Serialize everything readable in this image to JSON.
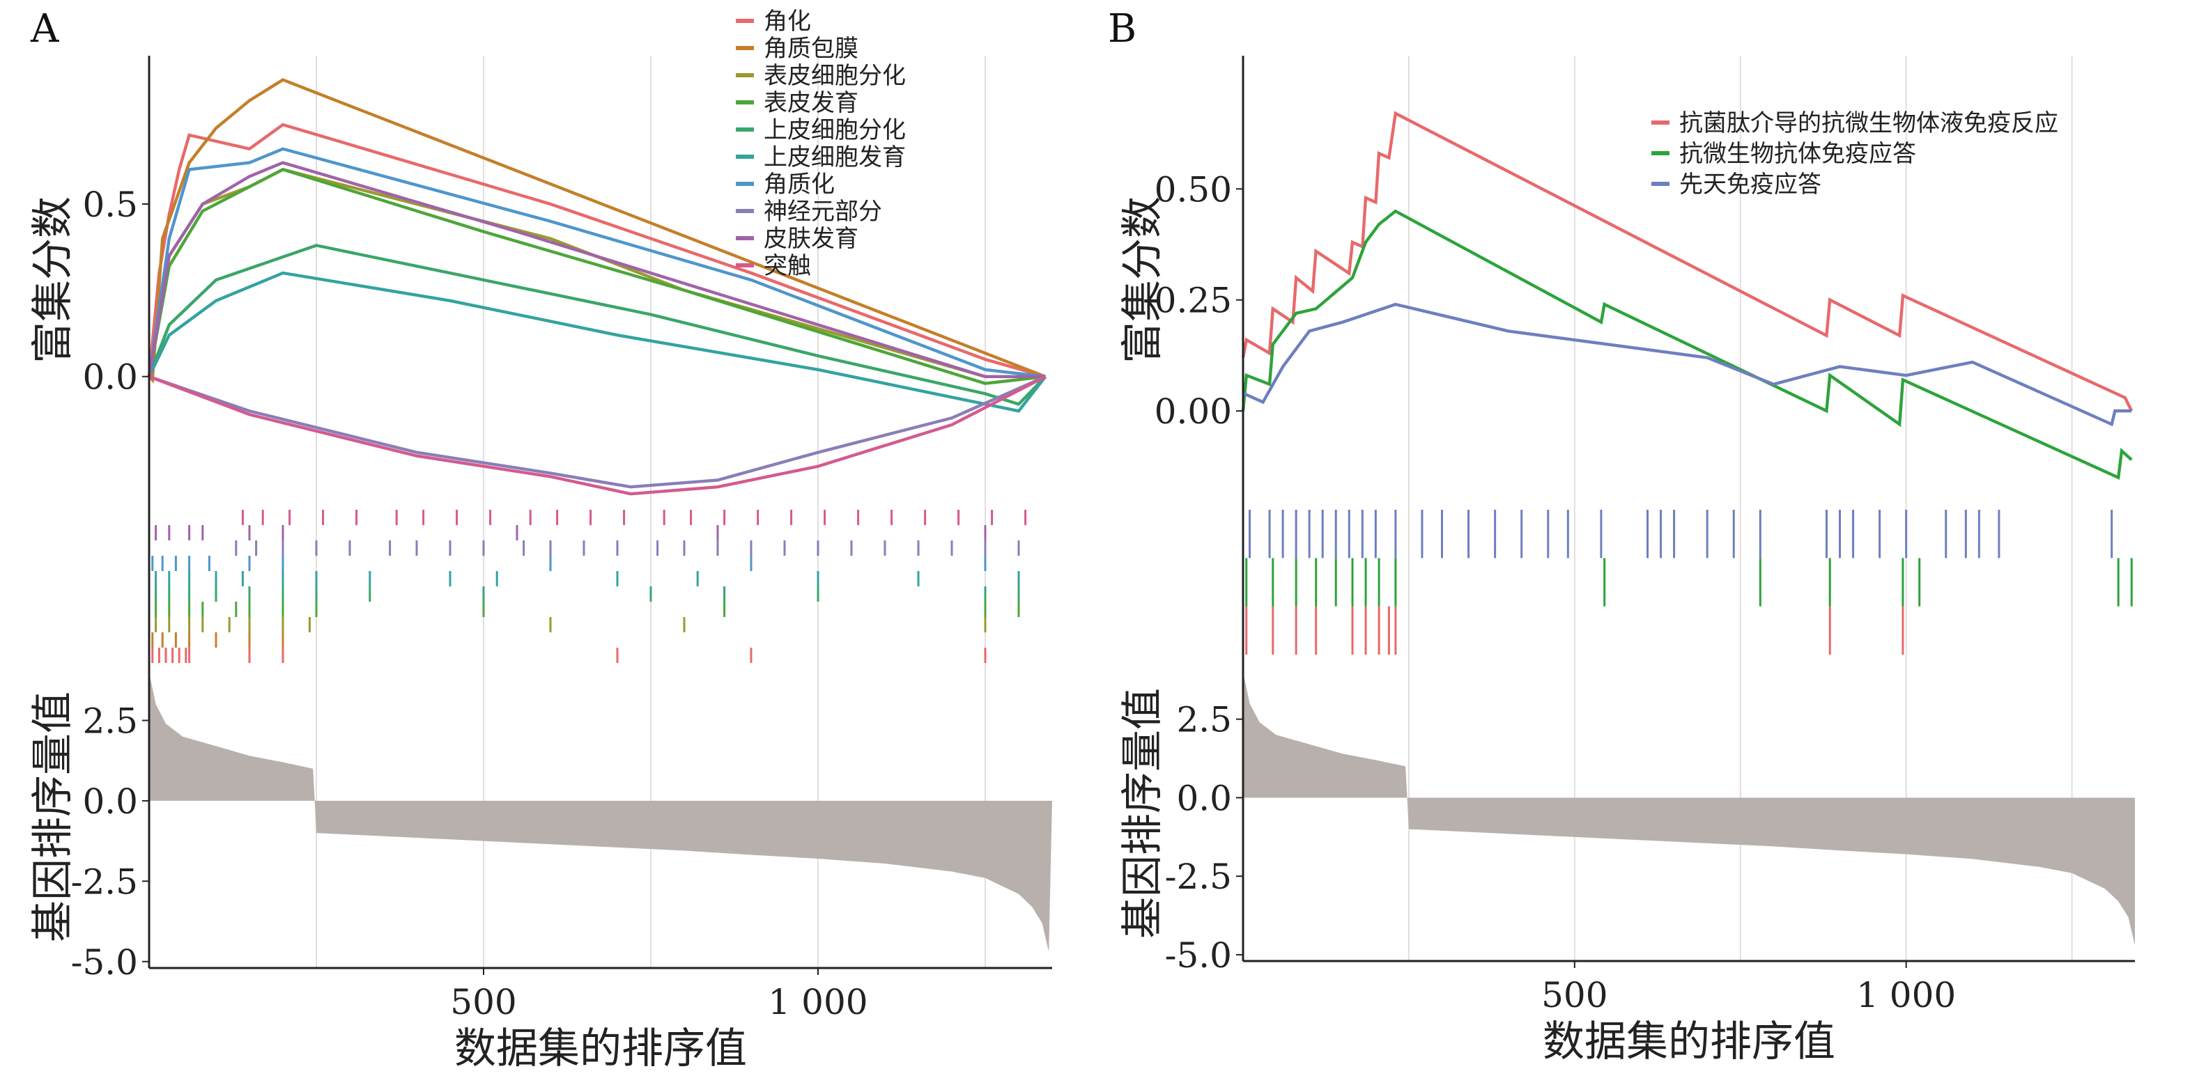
{
  "chart_data": [
    {
      "panel": "A",
      "type": "line",
      "ylabel_es": "富集分数",
      "ylabel_rank": "基因排序量值",
      "xlabel": "数据集的排序值",
      "xlim": [
        0,
        1350
      ],
      "es_ylim": [
        -0.37,
        0.93
      ],
      "rank_ylim": [
        -5.2,
        4.2
      ],
      "x_ticks": [
        {
          "v": 500,
          "label": "500"
        },
        {
          "v": 1000,
          "label": "1 000"
        }
      ],
      "es_ticks": [
        {
          "v": 0,
          "label": "0.0"
        },
        {
          "v": 0.5,
          "label": "0.5"
        }
      ],
      "rank_ticks": [
        {
          "v": 2.5,
          "label": "2.5"
        },
        {
          "v": 0,
          "label": "0.0"
        },
        {
          "v": -2.5,
          "label": "-2.5"
        },
        {
          "v": -5,
          "label": "-5.0"
        }
      ],
      "legend_position": "top-right",
      "series": [
        {
          "name": "角化",
          "color": "#E8696B",
          "points": [
            [
              0,
              0
            ],
            [
              15,
              0.3
            ],
            [
              30,
              0.47
            ],
            [
              45,
              0.6
            ],
            [
              60,
              0.7
            ],
            [
              150,
              0.66
            ],
            [
              200,
              0.73
            ],
            [
              600,
              0.5
            ],
            [
              900,
              0.3
            ],
            [
              1250,
              0.05
            ],
            [
              1340,
              0
            ]
          ],
          "hits": [
            5,
            15,
            25,
            35,
            45,
            55,
            60,
            150,
            200,
            700,
            900,
            1250
          ]
        },
        {
          "name": "角质包膜",
          "color": "#C47F2A",
          "points": [
            [
              0,
              0
            ],
            [
              5,
              -0.01
            ],
            [
              20,
              0.4
            ],
            [
              60,
              0.62
            ],
            [
              100,
              0.72
            ],
            [
              150,
              0.8
            ],
            [
              200,
              0.86
            ],
            [
              1340,
              0
            ]
          ],
          "hits": [
            5,
            20,
            40,
            60,
            100,
            150,
            200
          ]
        },
        {
          "name": "表皮细胞分化",
          "color": "#9A9A2E",
          "points": [
            [
              0,
              0
            ],
            [
              30,
              0.35
            ],
            [
              80,
              0.5
            ],
            [
              150,
              0.55
            ],
            [
              200,
              0.6
            ],
            [
              600,
              0.4
            ],
            [
              800,
              0.25
            ],
            [
              1250,
              0.0
            ],
            [
              1340,
              0
            ]
          ],
          "hits": [
            10,
            30,
            60,
            80,
            120,
            150,
            200,
            240,
            600,
            800,
            1250
          ]
        },
        {
          "name": "表皮发育",
          "color": "#4DA63A",
          "points": [
            [
              0,
              0
            ],
            [
              30,
              0.32
            ],
            [
              80,
              0.48
            ],
            [
              150,
              0.55
            ],
            [
              200,
              0.6
            ],
            [
              500,
              0.42
            ],
            [
              800,
              0.25
            ],
            [
              1250,
              -0.02
            ],
            [
              1340,
              0
            ]
          ],
          "hits": [
            10,
            30,
            60,
            80,
            130,
            150,
            200,
            250,
            500,
            860,
            1250,
            1300
          ]
        },
        {
          "name": "上皮细胞分化",
          "color": "#3AA66A",
          "points": [
            [
              0,
              0
            ],
            [
              30,
              0.15
            ],
            [
              100,
              0.28
            ],
            [
              250,
              0.38
            ],
            [
              500,
              0.28
            ],
            [
              750,
              0.18
            ],
            [
              1000,
              0.06
            ],
            [
              1250,
              -0.05
            ],
            [
              1300,
              -0.08
            ],
            [
              1340,
              0
            ]
          ],
          "hits": [
            10,
            30,
            60,
            100,
            150,
            200,
            250,
            330,
            500,
            750,
            860,
            1000,
            1250,
            1300
          ]
        },
        {
          "name": "上皮细胞发育",
          "color": "#33A3A0",
          "points": [
            [
              0,
              0
            ],
            [
              30,
              0.12
            ],
            [
              100,
              0.22
            ],
            [
              200,
              0.3
            ],
            [
              450,
              0.22
            ],
            [
              700,
              0.12
            ],
            [
              1000,
              0.02
            ],
            [
              1300,
              -0.1
            ],
            [
              1340,
              0
            ]
          ],
          "hits": [
            10,
            30,
            60,
            100,
            140,
            200,
            250,
            330,
            450,
            520,
            700,
            820,
            1000,
            1150,
            1300
          ]
        },
        {
          "name": "角质化",
          "color": "#4E96CC",
          "points": [
            [
              0,
              0
            ],
            [
              30,
              0.4
            ],
            [
              60,
              0.6
            ],
            [
              150,
              0.62
            ],
            [
              200,
              0.66
            ],
            [
              600,
              0.45
            ],
            [
              900,
              0.28
            ],
            [
              1250,
              0.02
            ],
            [
              1340,
              0
            ]
          ],
          "hits": [
            5,
            20,
            40,
            60,
            90,
            150,
            200,
            600,
            900,
            1250
          ]
        },
        {
          "name": "神经元部分",
          "color": "#8A7DB8",
          "points": [
            [
              0,
              0
            ],
            [
              150,
              -0.1
            ],
            [
              400,
              -0.22
            ],
            [
              600,
              -0.28
            ],
            [
              720,
              -0.32
            ],
            [
              850,
              -0.3
            ],
            [
              1000,
              -0.22
            ],
            [
              1200,
              -0.12
            ],
            [
              1340,
              0
            ]
          ],
          "hits": [
            130,
            160,
            200,
            250,
            300,
            360,
            400,
            450,
            500,
            560,
            600,
            650,
            700,
            760,
            800,
            850,
            900,
            950,
            1000,
            1050,
            1100,
            1150,
            1200,
            1250,
            1300
          ]
        },
        {
          "name": "皮肤发育",
          "color": "#A063A8",
          "points": [
            [
              0,
              0
            ],
            [
              30,
              0.35
            ],
            [
              80,
              0.5
            ],
            [
              150,
              0.58
            ],
            [
              200,
              0.62
            ],
            [
              550,
              0.42
            ],
            [
              850,
              0.24
            ],
            [
              1250,
              0.0
            ],
            [
              1340,
              0
            ]
          ],
          "hits": [
            10,
            30,
            60,
            80,
            150,
            200,
            550,
            850,
            1250
          ]
        },
        {
          "name": "突触",
          "color": "#D45A8E",
          "points": [
            [
              0,
              0
            ],
            [
              150,
              -0.11
            ],
            [
              400,
              -0.23
            ],
            [
              600,
              -0.29
            ],
            [
              720,
              -0.34
            ],
            [
              850,
              -0.32
            ],
            [
              1000,
              -0.26
            ],
            [
              1200,
              -0.14
            ],
            [
              1340,
              0
            ]
          ],
          "hits": [
            140,
            170,
            210,
            260,
            310,
            370,
            410,
            460,
            510,
            570,
            610,
            660,
            710,
            770,
            810,
            860,
            910,
            960,
            1010,
            1060,
            1110,
            1160,
            1210,
            1260,
            1310
          ]
        }
      ]
    },
    {
      "panel": "B",
      "type": "line",
      "ylabel_es": "富集分数",
      "ylabel_rank": "基因排序量值",
      "xlabel": "数据集的排序值",
      "xlim": [
        0,
        1345
      ],
      "es_ylim": [
        -0.21,
        0.8
      ],
      "rank_ylim": [
        -5.2,
        4.2
      ],
      "x_ticks": [
        {
          "v": 500,
          "label": "500"
        },
        {
          "v": 1000,
          "label": "1 000"
        }
      ],
      "es_ticks": [
        {
          "v": 0,
          "label": "0.00"
        },
        {
          "v": 0.25,
          "label": "0.25"
        },
        {
          "v": 0.5,
          "label": "0.50"
        }
      ],
      "rank_ticks": [
        {
          "v": 2.5,
          "label": "2.5"
        },
        {
          "v": 0,
          "label": "0.0"
        },
        {
          "v": -2.5,
          "label": "-2.5"
        },
        {
          "v": -5,
          "label": "-5.0"
        }
      ],
      "legend_position": "top-right",
      "series": [
        {
          "name": "抗菌肽介导的抗微生物体液免疫反应",
          "color": "#E8696B",
          "points": [
            [
              0,
              0.12
            ],
            [
              5,
              0.16
            ],
            [
              40,
              0.13
            ],
            [
              45,
              0.23
            ],
            [
              75,
              0.2
            ],
            [
              80,
              0.3
            ],
            [
              105,
              0.27
            ],
            [
              110,
              0.36
            ],
            [
              160,
              0.31
            ],
            [
              165,
              0.38
            ],
            [
              180,
              0.37
            ],
            [
              185,
              0.48
            ],
            [
              200,
              0.47
            ],
            [
              205,
              0.58
            ],
            [
              220,
              0.57
            ],
            [
              230,
              0.67
            ],
            [
              880,
              0.17
            ],
            [
              885,
              0.25
            ],
            [
              990,
              0.17
            ],
            [
              995,
              0.26
            ],
            [
              1330,
              0.03
            ],
            [
              1340,
              0.0
            ]
          ],
          "hits": [
            5,
            45,
            80,
            110,
            165,
            185,
            205,
            220,
            230,
            885,
            995
          ]
        },
        {
          "name": "抗微生物抗体免疫应答",
          "color": "#2EA33C",
          "points": [
            [
              0,
              0
            ],
            [
              5,
              0.08
            ],
            [
              40,
              0.06
            ],
            [
              45,
              0.15
            ],
            [
              80,
              0.22
            ],
            [
              110,
              0.23
            ],
            [
              165,
              0.3
            ],
            [
              185,
              0.38
            ],
            [
              205,
              0.42
            ],
            [
              230,
              0.45
            ],
            [
              540,
              0.2
            ],
            [
              545,
              0.24
            ],
            [
              880,
              0.0
            ],
            [
              885,
              0.08
            ],
            [
              990,
              -0.03
            ],
            [
              995,
              0.07
            ],
            [
              1320,
              -0.15
            ],
            [
              1325,
              -0.09
            ],
            [
              1340,
              -0.11
            ]
          ],
          "hits": [
            5,
            45,
            80,
            110,
            140,
            165,
            185,
            205,
            230,
            545,
            780,
            885,
            995,
            1020,
            1320,
            1340
          ]
        },
        {
          "name": "先天免疫应答",
          "color": "#6E7FBF",
          "points": [
            [
              0,
              0.04
            ],
            [
              30,
              0.02
            ],
            [
              60,
              0.1
            ],
            [
              100,
              0.18
            ],
            [
              150,
              0.2
            ],
            [
              230,
              0.24
            ],
            [
              400,
              0.18
            ],
            [
              600,
              0.14
            ],
            [
              700,
              0.12
            ],
            [
              800,
              0.06
            ],
            [
              900,
              0.1
            ],
            [
              1000,
              0.08
            ],
            [
              1100,
              0.11
            ],
            [
              1310,
              -0.03
            ],
            [
              1315,
              0.0
            ],
            [
              1340,
              0
            ]
          ],
          "hits": [
            10,
            40,
            60,
            80,
            100,
            120,
            140,
            160,
            180,
            200,
            230,
            270,
            300,
            340,
            380,
            420,
            460,
            490,
            540,
            610,
            630,
            650,
            700,
            740,
            780,
            880,
            900,
            920,
            960,
            1000,
            1060,
            1090,
            1110,
            1140,
            1310
          ]
        }
      ]
    }
  ],
  "rank_metric": {
    "ranks": [
      0,
      10,
      25,
      50,
      100,
      150,
      200,
      245,
      250,
      300,
      400,
      500,
      600,
      700,
      800,
      900,
      1000,
      1100,
      1200,
      1250,
      1300,
      1320,
      1335,
      1345
    ],
    "values": [
      4.0,
      3.0,
      2.4,
      2.0,
      1.7,
      1.4,
      1.2,
      1.0,
      -1.0,
      -1.05,
      -1.15,
      -1.25,
      -1.35,
      -1.45,
      -1.55,
      -1.68,
      -1.8,
      -1.95,
      -2.2,
      -2.4,
      -2.9,
      -3.3,
      -3.8,
      -4.7
    ],
    "color": "#B8B0AC"
  }
}
